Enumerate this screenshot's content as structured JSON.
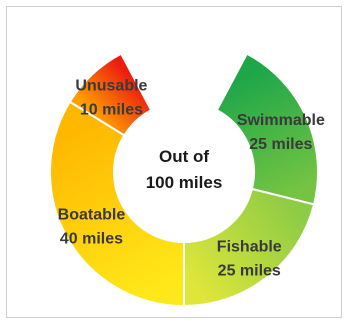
{
  "chart_data": {
    "type": "pie",
    "style": "doughnut",
    "center_label": {
      "line1": "Out of",
      "line2": "100 miles"
    },
    "total": 100,
    "slices": [
      {
        "name": "Swimmable",
        "value_label": "25 miles",
        "value": 25,
        "color_a": "#1ea64a",
        "color_b": "#74c442"
      },
      {
        "name": "Fishable",
        "value_label": "25 miles",
        "value": 25,
        "color_a": "#8fcc45",
        "color_b": "#dfe63a"
      },
      {
        "name": "Boatable",
        "value_label": "40 miles",
        "value": 40,
        "color_a": "#ffe81a",
        "color_b": "#ffb700"
      },
      {
        "name": "Unusable",
        "value_label": "10 miles",
        "value": 10,
        "color_a": "#ff9f00",
        "color_b": "#ec1c10"
      }
    ]
  }
}
